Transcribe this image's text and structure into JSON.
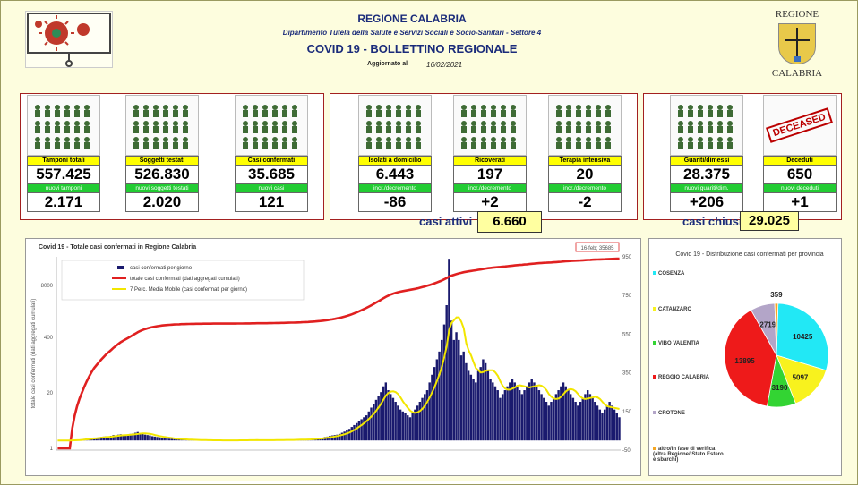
{
  "header": {
    "region": "REGIONE CALABRIA",
    "department": "Dipartimento Tutela della Salute e Servizi Sociali e Socio-Sanitari - Settore 4",
    "bulletin": "COVID 19 - BOLLETTINO REGIONALE",
    "updated_label": "Aggiornato al",
    "updated_date": "16/02/2021",
    "logo_top": "REGIONE",
    "logo_bottom": "CALABRIA"
  },
  "tiles": [
    {
      "label": "Tamponi totali",
      "value": "557.425",
      "sub_label": "nuovi tamponi",
      "sub_value": "2.171",
      "icon": "lab-equipment-icon"
    },
    {
      "label": "Soggetti testati",
      "value": "526.830",
      "sub_label": "nuovi soggetti testati",
      "sub_value": "2.020",
      "icon": "people-grid-icon"
    },
    {
      "label": "Casi confermati",
      "value": "35.685",
      "sub_label": "nuovi casi",
      "sub_value": "121",
      "icon": "virus-people-icon"
    },
    {
      "label": "Isolati a domicilio",
      "value": "6.443",
      "sub_label": "incr./decremento",
      "sub_value": "-86",
      "icon": "house-icon"
    },
    {
      "label": "Ricoverati",
      "value": "197",
      "sub_label": "incr./decremento",
      "sub_value": "+2",
      "icon": "hospital-bed-icon"
    },
    {
      "label": "Terapia intensiva",
      "value": "20",
      "sub_label": "incr./decremento",
      "sub_value": "-2",
      "icon": "icu-bed-icon"
    },
    {
      "label": "Guariti/dimessi",
      "value": "28.375",
      "sub_label": "nuovi guariti/dim.",
      "sub_value": "+206",
      "icon": "recovered-person-icon"
    },
    {
      "label": "Deceduti",
      "value": "650",
      "sub_label": "nuovi deceduti",
      "sub_value": "+1",
      "icon": "deceased-stamp-icon",
      "stamp": "DECEASED"
    }
  ],
  "summary": {
    "attivi_label": "casi attivi",
    "attivi_value": "6.660",
    "chiusi_label": "casi chiusi",
    "chiusi_value": "29.025"
  },
  "colors": {
    "bars": "#1a1a6e",
    "cumulative": "#e02020",
    "moving_avg": "#f2e600",
    "label_bg": "#ffff00",
    "sub_label_bg": "#22cc33",
    "frame": "#a32020"
  },
  "chart_data": [
    {
      "type": "bar",
      "title": "Covid 19 - Totale casi confermati in Regione Calabria",
      "annotation": "16-feb; 35685",
      "ylabel": "totale casi confermati (dati aggregati cumulati)",
      "y_left_ticks": [
        "8000",
        "400",
        "20",
        "1"
      ],
      "y_left_scale": "log",
      "y_right_ticks": [
        "950",
        "750",
        "550",
        "350",
        "150",
        "-50"
      ],
      "ylim_right": [
        -50,
        950
      ],
      "grid": false,
      "legend_position": "top-left",
      "series": [
        {
          "name": "casi confermati per giorno",
          "kind": "bar",
          "values": [
            0,
            0,
            0,
            0,
            0,
            0,
            2,
            3,
            4,
            5,
            6,
            8,
            10,
            12,
            14,
            15,
            14,
            16,
            18,
            20,
            22,
            20,
            24,
            28,
            26,
            30,
            32,
            28,
            26,
            30,
            34,
            36,
            40,
            44,
            38,
            34,
            30,
            28,
            26,
            22,
            20,
            18,
            16,
            14,
            12,
            10,
            9,
            8,
            7,
            6,
            5,
            5,
            4,
            4,
            3,
            3,
            2,
            2,
            2,
            1,
            1,
            1,
            1,
            1,
            1,
            0,
            0,
            1,
            0,
            1,
            1,
            0,
            0,
            1,
            1,
            1,
            2,
            2,
            1,
            1,
            2,
            2,
            2,
            1,
            1,
            1,
            1,
            2,
            2,
            3,
            3,
            2,
            2,
            3,
            3,
            4,
            4,
            3,
            4,
            5,
            6,
            6,
            5,
            6,
            8,
            10,
            12,
            14,
            12,
            14,
            18,
            20,
            24,
            26,
            28,
            30,
            34,
            40,
            46,
            52,
            60,
            70,
            80,
            90,
            100,
            110,
            120,
            130,
            150,
            170,
            190,
            210,
            230,
            250,
            280,
            300,
            260,
            240,
            220,
            200,
            180,
            160,
            150,
            140,
            130,
            120,
            140,
            160,
            180,
            200,
            220,
            240,
            260,
            300,
            340,
            380,
            420,
            460,
            520,
            600,
            700,
            940,
            620,
            520,
            560,
            520,
            440,
            460,
            400,
            360,
            340,
            320,
            300,
            360,
            380,
            420,
            400,
            360,
            320,
            300,
            280,
            260,
            220,
            240,
            260,
            280,
            300,
            320,
            300,
            280,
            260,
            240,
            260,
            280,
            300,
            320,
            300,
            280,
            260,
            240,
            220,
            200,
            180,
            200,
            220,
            240,
            260,
            280,
            300,
            280,
            260,
            240,
            220,
            200,
            180,
            200,
            220,
            240,
            260,
            240,
            220,
            200,
            180,
            160,
            140,
            160,
            180,
            200,
            180,
            160,
            140,
            120
          ]
        },
        {
          "name": "totale casi confermati (dati aggregati cumulati)",
          "kind": "line"
        },
        {
          "name": "7 Perc. Media Mobile (casi confermati per giorno)",
          "kind": "line"
        }
      ]
    },
    {
      "type": "pie",
      "title": "Covid 19 - Distribuzione casi confermati per provincia",
      "categories": [
        "COSENZA",
        "CATANZARO",
        "VIBO VALENTIA",
        "REGGIO CALABRIA",
        "CROTONE",
        "altro/in fase di verifica (altra Regione/ Stato Estero e sbarchi)"
      ],
      "values": [
        10425,
        5097,
        3190,
        13895,
        2719,
        359
      ],
      "colors": [
        "#22e8f5",
        "#f8f21e",
        "#33d433",
        "#ee1a1a",
        "#b3a5c8",
        "#f5a623"
      ]
    }
  ]
}
